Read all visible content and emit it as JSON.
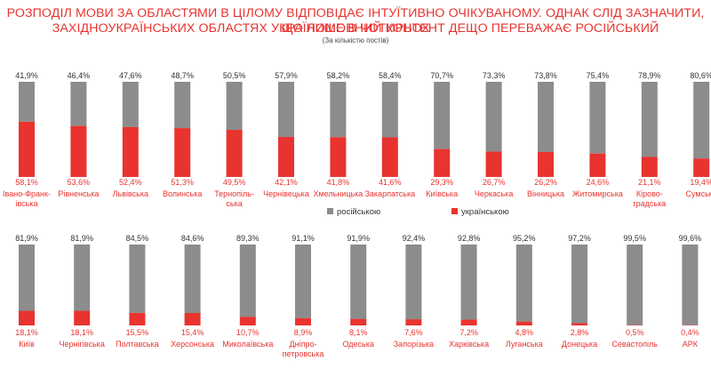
{
  "title_line1": "РОЗПОДІЛ МОВИ ЗА ОБЛАСТЯМИ В ЦІЛОМУ ВІДПОВІДАЄ ІНТУЇТИВНО ОЧІКУВАНОМУ. ОДНАК СЛІД ЗАЗНАЧИТИ, ЩО ЛИШЕ В ЧОТИРЬОХ",
  "title_line2": "ЗАХІДНОУКРАЇНСЬКИХ ОБЛАСТЯХ УКРАЇНОМОВНИЙ КОНТЕНТ ДЕЩО ПЕРЕВАЖАЄ РОСІЙСЬКИЙ",
  "subtitle": "(За кількістю постів)",
  "colors": {
    "russian": "#8c8c8c",
    "ukrainian": "#e8332f",
    "title": "#e8332f"
  },
  "chart_data": [
    {
      "type": "bar",
      "stacked": true,
      "categories": [
        [
          "Івано-Франк-",
          "івська"
        ],
        [
          "Рівненська"
        ],
        [
          "Львівська"
        ],
        [
          "Волинська"
        ],
        [
          "Тернопіль-",
          "ська"
        ],
        [
          "Чернівецька"
        ],
        [
          "Хмельницька"
        ],
        [
          "Закарпатська"
        ],
        [
          "Київська"
        ],
        [
          "Черкаська"
        ],
        [
          "Вінницька"
        ],
        [
          "Житомирська"
        ],
        [
          "Кірово-",
          "градська"
        ],
        [
          "Сумська"
        ]
      ],
      "series": [
        {
          "name": "російською",
          "values": [
            41.9,
            46.4,
            47.6,
            48.7,
            50.5,
            57.9,
            58.2,
            58.4,
            70.7,
            73.3,
            73.8,
            75.4,
            78.9,
            80.6
          ]
        },
        {
          "name": "українською",
          "values": [
            58.1,
            53.6,
            52.4,
            51.3,
            49.5,
            42.1,
            41.8,
            41.6,
            29.3,
            26.7,
            26.2,
            24.6,
            21.1,
            19.4
          ]
        }
      ],
      "ylim": [
        0,
        100
      ],
      "legend": "bottom"
    },
    {
      "type": "bar",
      "stacked": true,
      "categories": [
        [
          "Київ"
        ],
        [
          "Чернігівська"
        ],
        [
          "Полтавська"
        ],
        [
          "Херсонська"
        ],
        [
          "Миколаївська"
        ],
        [
          "Дніпро-",
          "петровська"
        ],
        [
          "Одеська"
        ],
        [
          "Запорізька"
        ],
        [
          "Харківська"
        ],
        [
          "Луганська"
        ],
        [
          "Донецька"
        ],
        [
          "Севастопіль"
        ],
        [
          "АРК"
        ]
      ],
      "series": [
        {
          "name": "російською",
          "values": [
            81.9,
            81.9,
            84.5,
            84.6,
            89.3,
            91.1,
            91.9,
            92.4,
            92.8,
            95.2,
            97.2,
            99.5,
            99.6
          ]
        },
        {
          "name": "українською",
          "values": [
            18.1,
            18.1,
            15.5,
            15.4,
            10.7,
            8.9,
            8.1,
            7.6,
            7.2,
            4.8,
            2.8,
            0.5,
            0.4
          ]
        }
      ],
      "ylim": [
        0,
        100
      ]
    }
  ]
}
